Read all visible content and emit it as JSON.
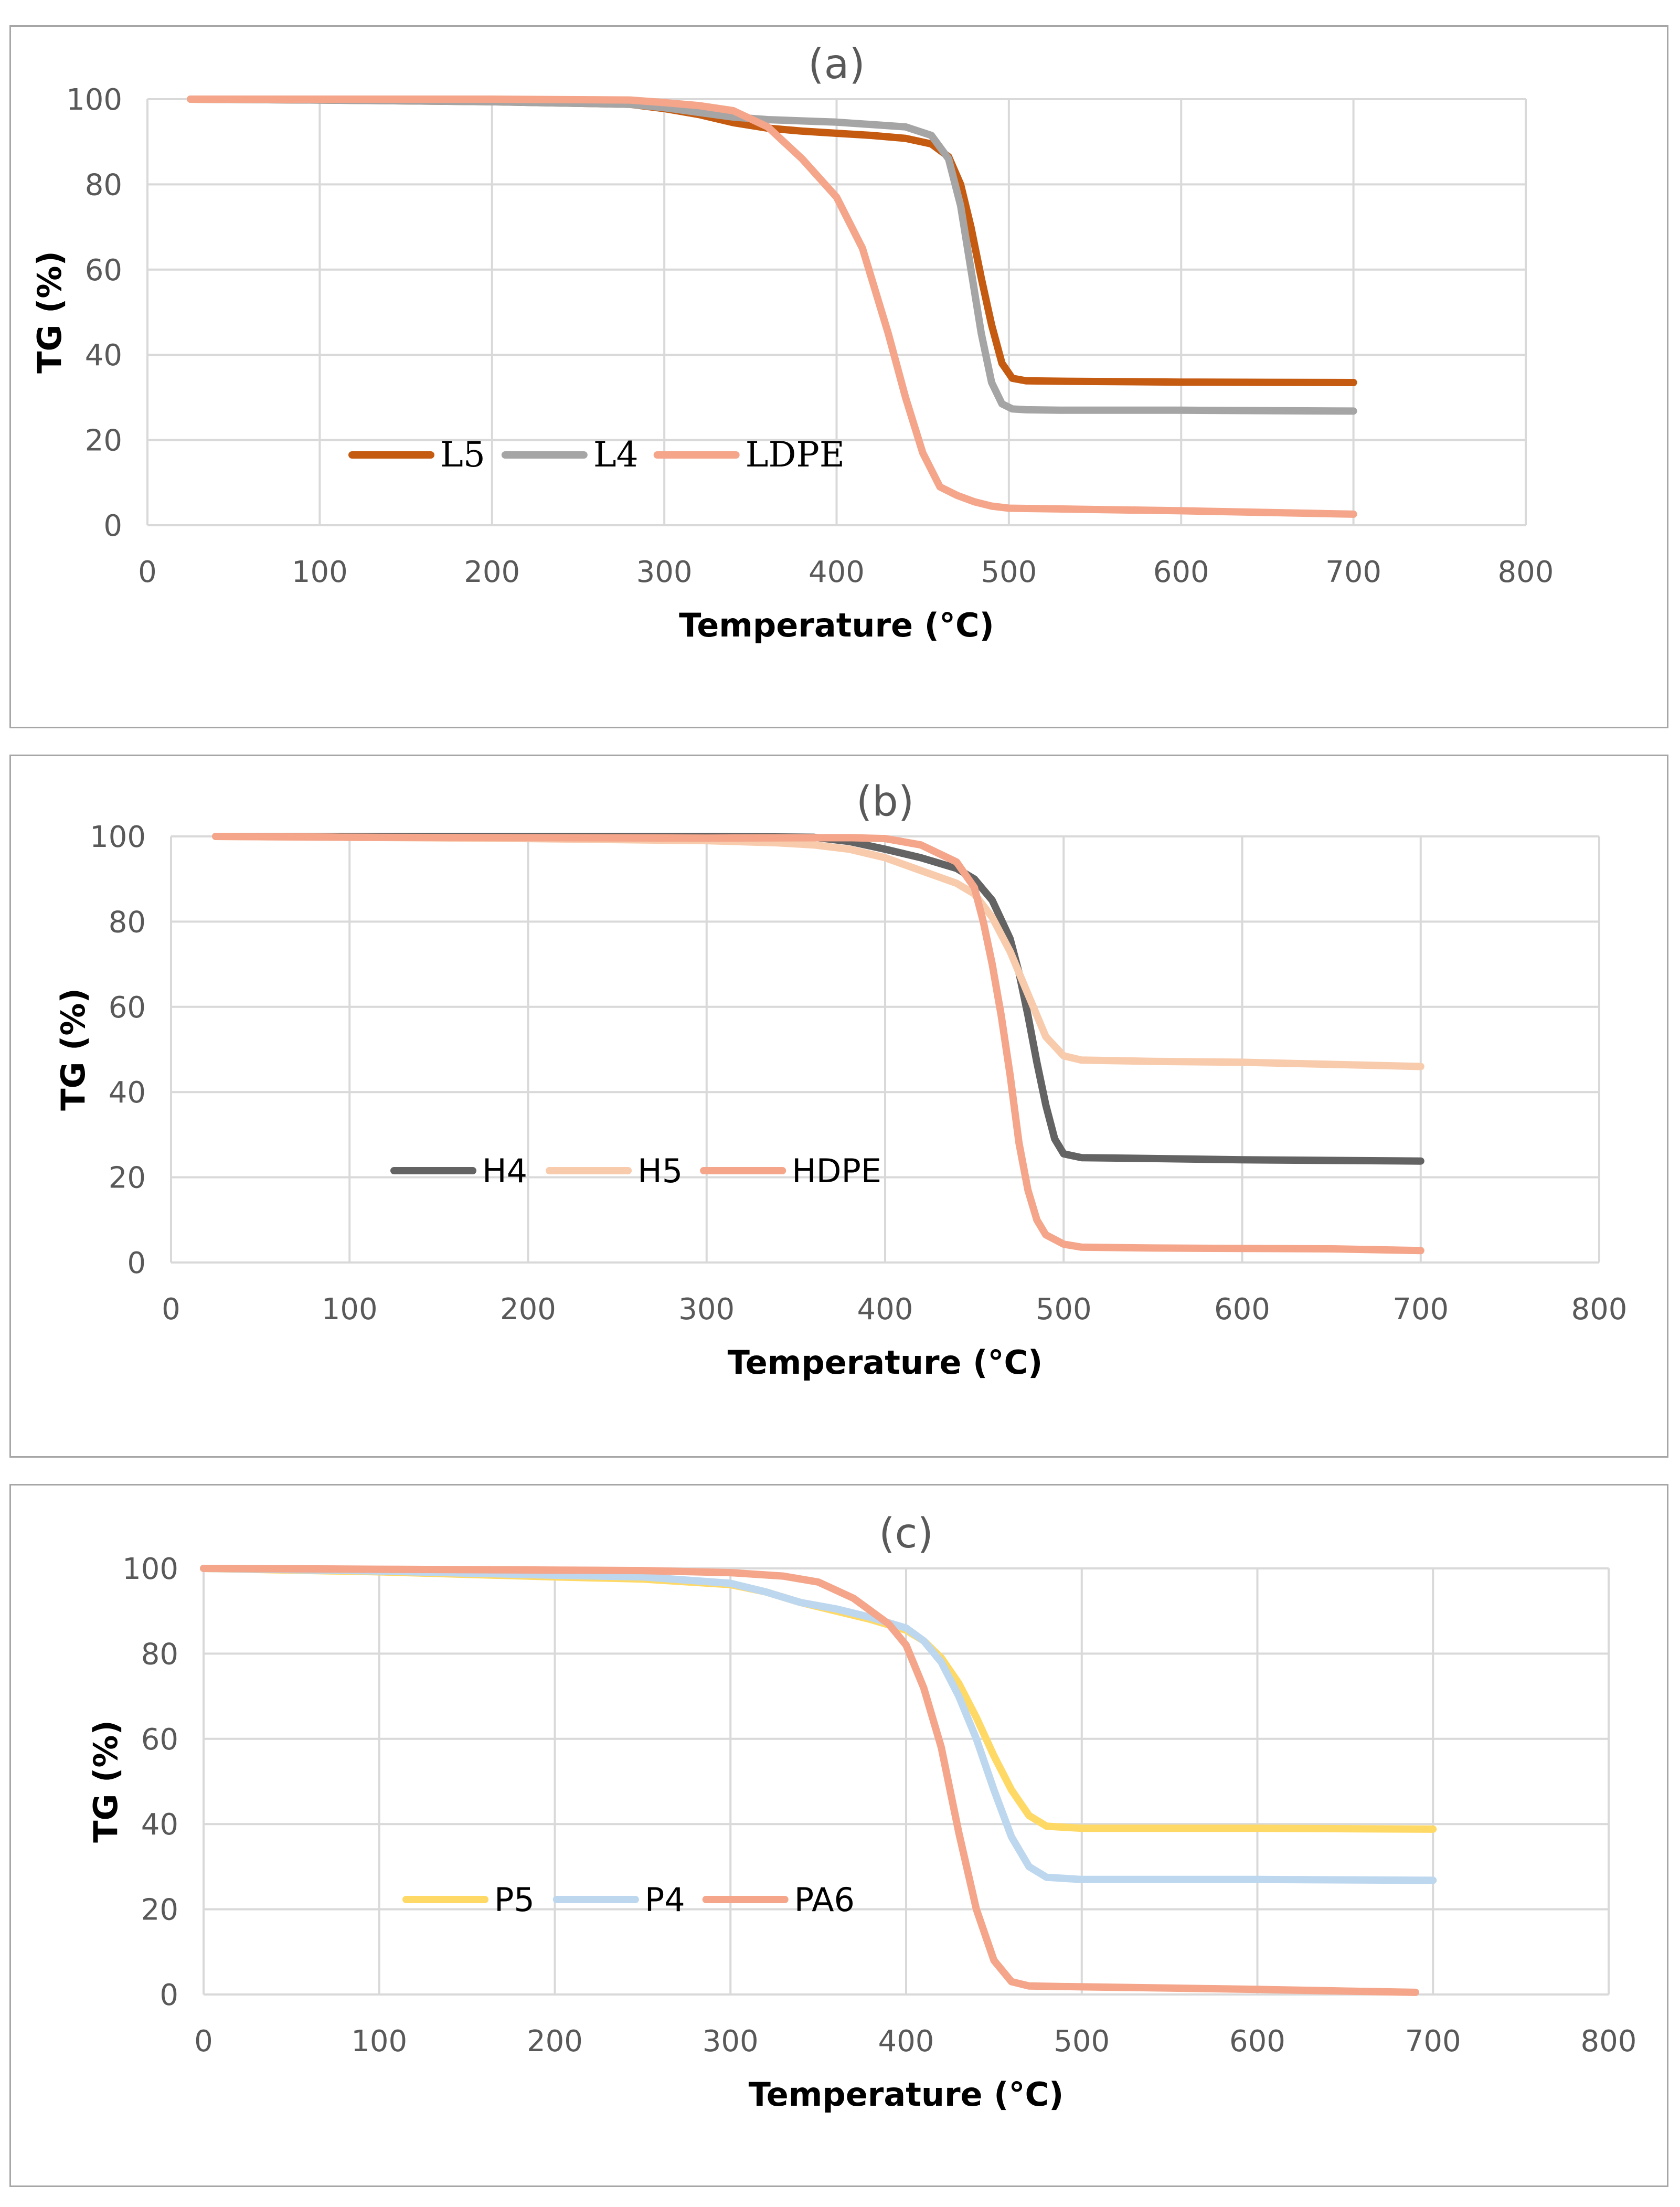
{
  "chart_data": [
    {
      "type": "line",
      "title": "(a)",
      "xlabel": "Temperature (°C)",
      "ylabel": "TG (%)",
      "xlim": [
        0,
        800
      ],
      "ylim": [
        0,
        100
      ],
      "x_ticks": [
        "0",
        "100",
        "200",
        "300",
        "400",
        "500",
        "600",
        "700",
        "800"
      ],
      "y_ticks": [
        "0",
        "20",
        "40",
        "60",
        "80",
        "100"
      ],
      "grid": true,
      "legend_position": "center-left",
      "series": [
        {
          "name": "L5",
          "color": "#c55a11",
          "x": [
            25,
            100,
            200,
            280,
            300,
            320,
            340,
            360,
            380,
            400,
            420,
            440,
            455,
            465,
            472,
            478,
            484,
            490,
            496,
            502,
            510,
            530,
            600,
            700
          ],
          "y": [
            100,
            99.8,
            99.4,
            98.8,
            97.8,
            96.4,
            94.5,
            93.2,
            92.5,
            92,
            91.5,
            90.8,
            89.5,
            86.5,
            80,
            70,
            58,
            47,
            38,
            34.5,
            33.9,
            33.8,
            33.6,
            33.5
          ]
        },
        {
          "name": "L4",
          "color": "#a5a5a5",
          "x": [
            25,
            100,
            200,
            280,
            300,
            320,
            340,
            360,
            400,
            440,
            455,
            465,
            472,
            478,
            484,
            490,
            496,
            502,
            510,
            530,
            600,
            700
          ],
          "y": [
            100,
            99.8,
            99.4,
            98.8,
            98,
            96.9,
            95.8,
            95.2,
            94.6,
            93.5,
            91.5,
            86,
            75,
            60,
            45,
            33.5,
            28.5,
            27.3,
            27.1,
            27,
            27,
            26.8
          ]
        },
        {
          "name": "LDPE",
          "color": "#f4a58a",
          "x": [
            25,
            100,
            200,
            280,
            300,
            320,
            340,
            360,
            380,
            400,
            415,
            430,
            440,
            450,
            460,
            470,
            480,
            490,
            500,
            550,
            600,
            650,
            700
          ],
          "y": [
            100,
            100,
            100,
            99.8,
            99.2,
            98.5,
            97.3,
            93.5,
            86,
            77,
            65,
            45,
            30,
            17,
            9,
            7,
            5.5,
            4.5,
            4,
            3.7,
            3.4,
            3,
            2.6
          ]
        }
      ]
    },
    {
      "type": "line",
      "title": "(b)",
      "xlabel": "Temperature (°C)",
      "ylabel": "TG (%)",
      "xlim": [
        0,
        800
      ],
      "ylim": [
        0,
        100
      ],
      "x_ticks": [
        "0",
        "100",
        "200",
        "300",
        "400",
        "500",
        "600",
        "700",
        "800"
      ],
      "y_ticks": [
        "0",
        "20",
        "40",
        "60",
        "80",
        "100"
      ],
      "grid": true,
      "legend_position": "center-left",
      "series": [
        {
          "name": "H4",
          "color": "#636363",
          "x": [
            25,
            100,
            200,
            300,
            360,
            380,
            400,
            420,
            440,
            450,
            460,
            470,
            475,
            480,
            485,
            490,
            495,
            500,
            510,
            550,
            600,
            700
          ],
          "y": [
            100,
            100,
            100,
            100,
            99.8,
            98.8,
            97,
            95,
            92.5,
            90,
            85,
            76,
            68,
            58,
            47,
            37,
            29,
            25.5,
            24.6,
            24.4,
            24.1,
            23.8
          ]
        },
        {
          "name": "H5",
          "color": "#f8cbad",
          "x": [
            25,
            100,
            200,
            300,
            340,
            360,
            380,
            400,
            420,
            440,
            450,
            460,
            470,
            480,
            490,
            500,
            510,
            550,
            600,
            700
          ],
          "y": [
            100,
            99.8,
            99.5,
            99,
            98.5,
            98,
            97,
            95,
            92,
            89,
            86.5,
            81,
            73,
            63,
            53,
            48.5,
            47.5,
            47.2,
            47,
            46
          ]
        },
        {
          "name": "HDPE",
          "color": "#f4a58a",
          "x": [
            25,
            100,
            200,
            300,
            380,
            400,
            420,
            440,
            450,
            455,
            460,
            465,
            470,
            475,
            480,
            485,
            490,
            500,
            510,
            550,
            600,
            650,
            700
          ],
          "y": [
            100,
            99.8,
            99.7,
            99.6,
            99.7,
            99.5,
            98,
            94,
            88,
            80,
            70,
            58,
            44,
            28,
            17,
            10,
            6.5,
            4.3,
            3.6,
            3.4,
            3.3,
            3.2,
            2.8
          ]
        }
      ]
    },
    {
      "type": "line",
      "title": "(c)",
      "xlabel": "Temperature (°C)",
      "ylabel": "TG (%)",
      "xlim": [
        0,
        800
      ],
      "ylim": [
        0,
        100
      ],
      "x_ticks": [
        "0",
        "100",
        "200",
        "300",
        "400",
        "500",
        "600",
        "700",
        "800"
      ],
      "y_ticks": [
        "0",
        "20",
        "40",
        "60",
        "80",
        "100"
      ],
      "grid": true,
      "legend_position": "center-left",
      "series": [
        {
          "name": "P5",
          "color": "#ffd966",
          "x": [
            0,
            100,
            200,
            250,
            300,
            320,
            340,
            360,
            380,
            400,
            410,
            420,
            430,
            440,
            450,
            460,
            470,
            480,
            500,
            600,
            700
          ],
          "y": [
            100,
            99.2,
            98,
            97.5,
            96.2,
            94.5,
            92,
            90,
            88,
            85.5,
            83,
            79,
            73,
            65,
            56,
            48,
            42,
            39.5,
            39,
            39,
            38.8
          ]
        },
        {
          "name": "P4",
          "color": "#bdd7ee",
          "x": [
            0,
            100,
            200,
            250,
            300,
            320,
            340,
            360,
            380,
            400,
            410,
            420,
            430,
            440,
            450,
            460,
            470,
            480,
            500,
            600,
            700
          ],
          "y": [
            100,
            99.4,
            98.4,
            98,
            96.5,
            94.5,
            92,
            90.5,
            88.5,
            86,
            83,
            78,
            70,
            60,
            48,
            37,
            30,
            27.5,
            27,
            27,
            26.8
          ]
        },
        {
          "name": "PA6",
          "color": "#f4a58a",
          "x": [
            0,
            100,
            200,
            250,
            300,
            330,
            350,
            370,
            390,
            400,
            410,
            420,
            430,
            440,
            450,
            460,
            470,
            500,
            550,
            600,
            650,
            690
          ],
          "y": [
            100,
            99.8,
            99.6,
            99.5,
            99,
            98.2,
            96.8,
            93,
            87,
            82,
            72,
            58,
            38,
            20,
            8,
            3,
            2,
            1.8,
            1.5,
            1.2,
            0.8,
            0.5
          ]
        }
      ]
    }
  ]
}
